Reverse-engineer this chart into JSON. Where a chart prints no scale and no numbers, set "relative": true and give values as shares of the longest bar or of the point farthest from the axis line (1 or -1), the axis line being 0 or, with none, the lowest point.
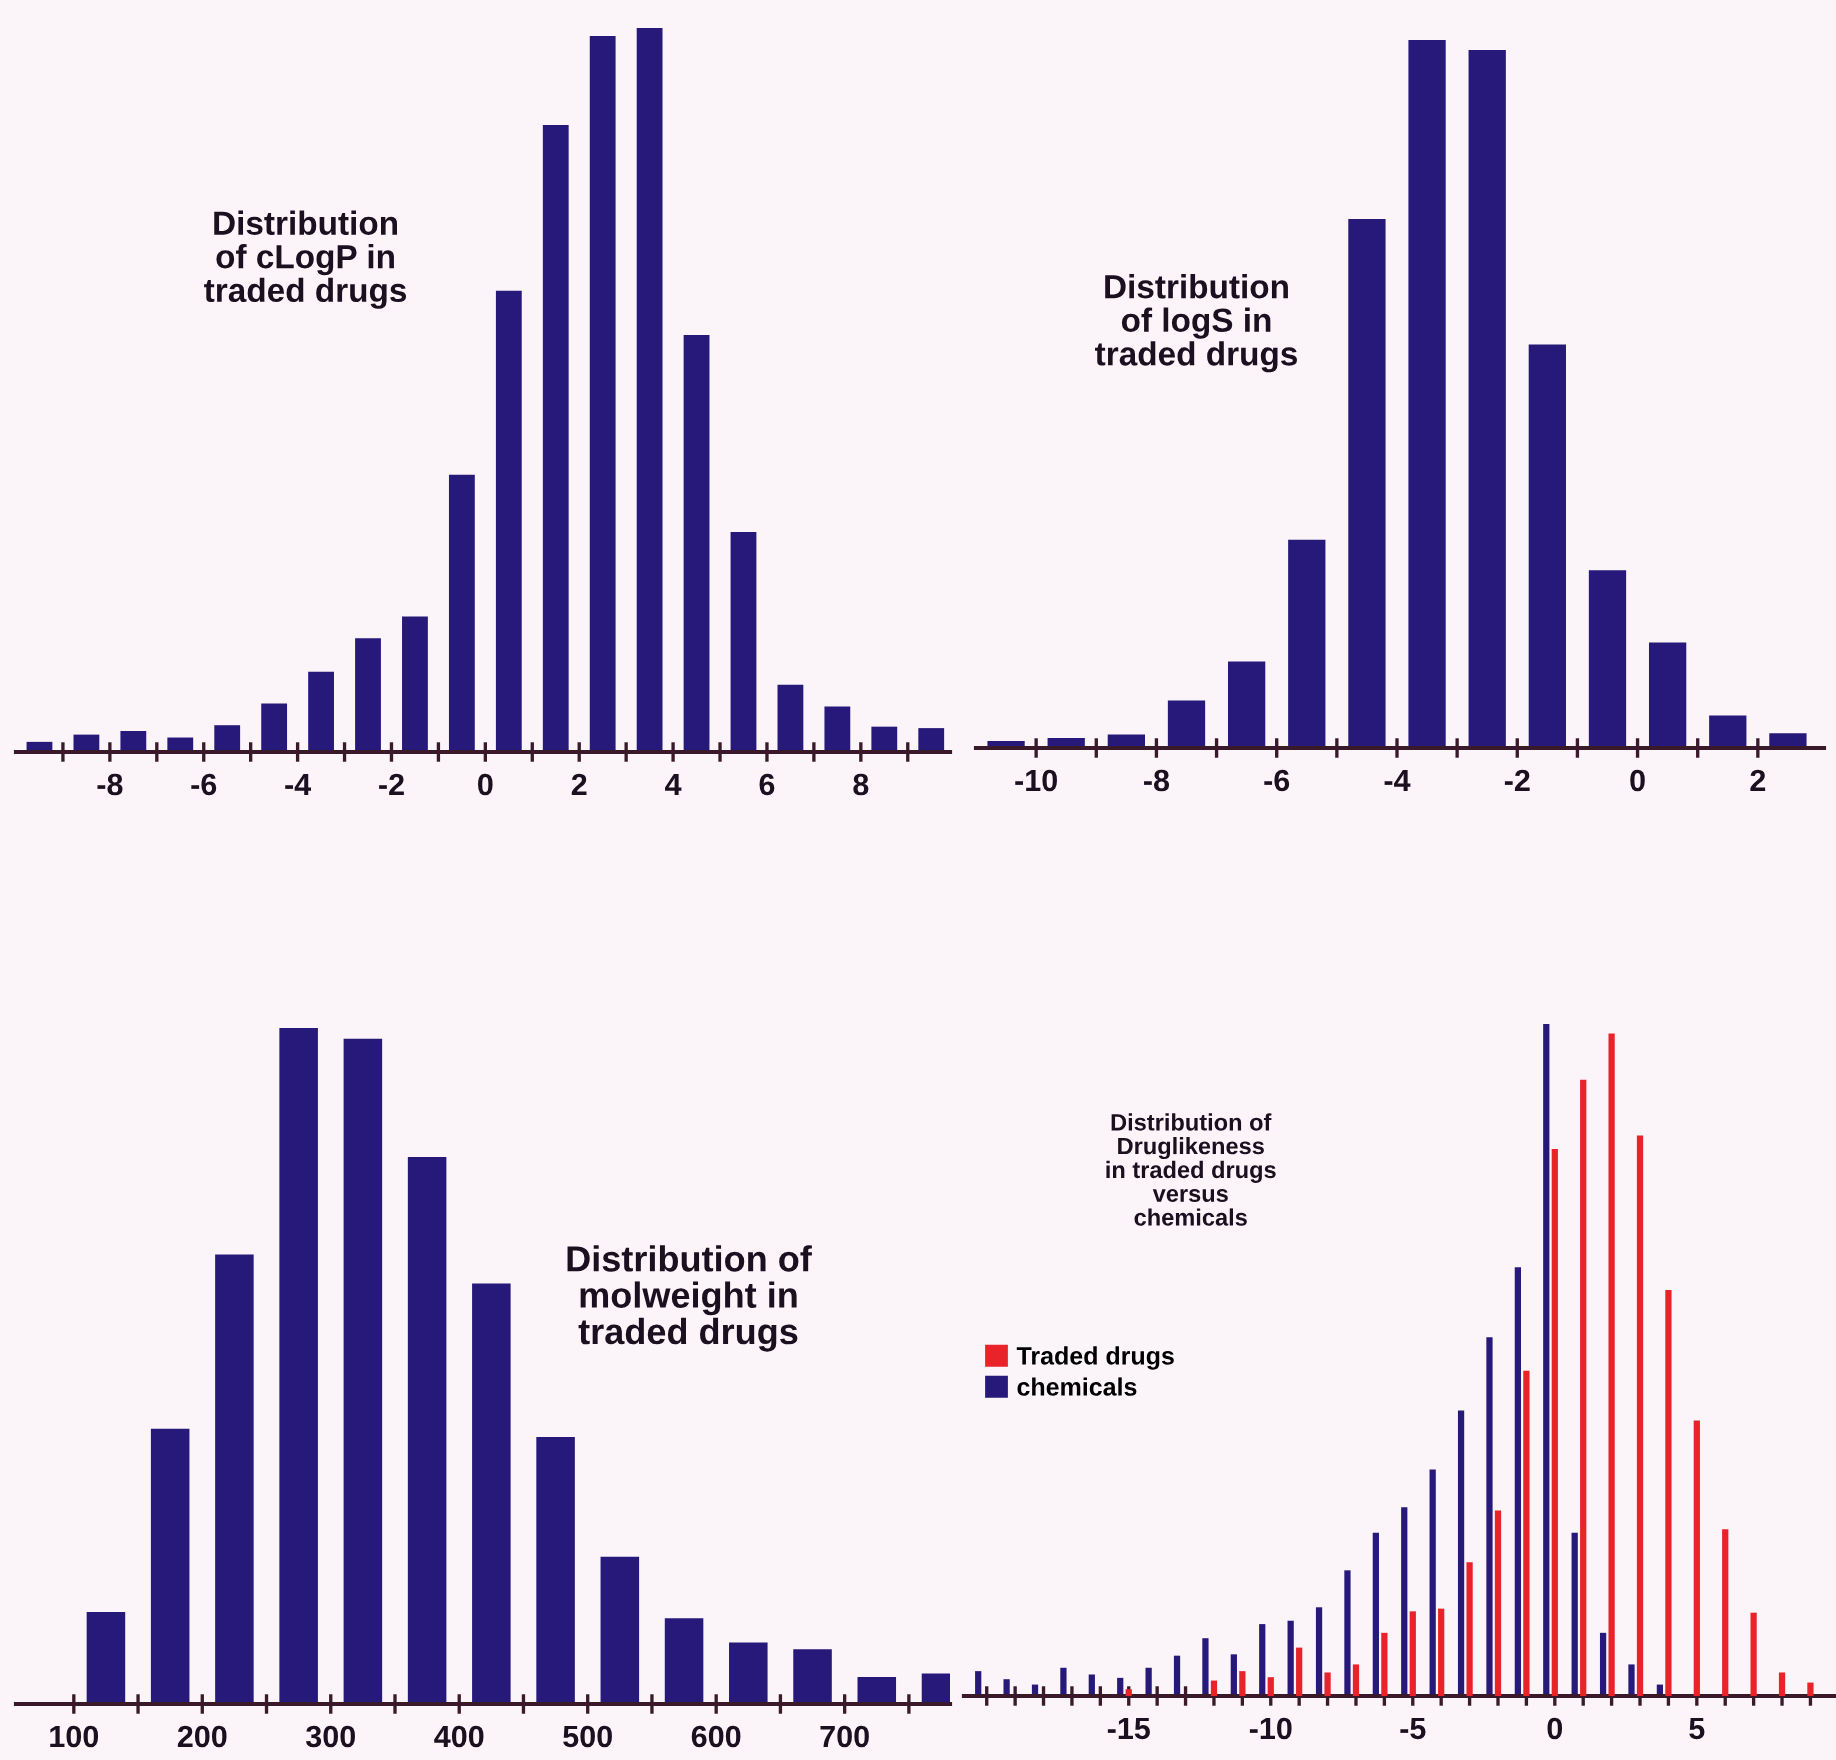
{
  "chart_data": [
    {
      "type": "bar",
      "title": "Distribution\nof cLogP in\ntraded drugs",
      "relative": true,
      "color": "#27197a",
      "x": [
        -9.5,
        -8.5,
        -7.5,
        -6.5,
        -5.5,
        -4.5,
        -3.5,
        -2.5,
        -1.5,
        -0.5,
        0.5,
        1.5,
        2.5,
        3.5,
        4.5,
        5.5,
        6.5,
        7.5,
        8.5,
        9.5
      ],
      "values": [
        0.014,
        0.024,
        0.029,
        0.02,
        0.037,
        0.067,
        0.111,
        0.157,
        0.187,
        0.383,
        0.637,
        0.866,
        0.989,
        1,
        0.576,
        0.304,
        0.093,
        0.063,
        0.035,
        0.033
      ],
      "xlim": [
        -10,
        9.9
      ],
      "xticks": [
        {
          "value": -9,
          "label": null
        },
        -8,
        {
          "value": -7,
          "label": null
        },
        -6,
        {
          "value": -5,
          "label": null
        },
        -4,
        {
          "value": -3,
          "label": null
        },
        -2,
        {
          "value": -1,
          "label": null
        },
        0,
        {
          "value": 1,
          "label": null
        },
        2,
        {
          "value": 3,
          "label": null
        },
        4,
        {
          "value": 5,
          "label": null
        },
        6,
        {
          "value": 7,
          "label": null
        },
        8,
        {
          "value": 9,
          "label": null
        }
      ]
    },
    {
      "type": "bar",
      "title": "Distribution\nof logS in\ntraded drugs",
      "relative": true,
      "color": "#27197a",
      "x": [
        -10.5,
        -9.5,
        -8.5,
        -7.5,
        -6.5,
        -5.5,
        -4.5,
        -3.5,
        -2.5,
        -1.5,
        -0.5,
        0.5,
        1.5,
        2.5
      ],
      "values": [
        0.01,
        0.014,
        0.019,
        0.067,
        0.122,
        0.294,
        0.747,
        1,
        0.986,
        0.57,
        0.251,
        0.149,
        0.046,
        0.021
      ],
      "xlim": [
        -11,
        3.1
      ],
      "xticks": [
        -10,
        {
          "value": -9,
          "label": null
        },
        -8,
        {
          "value": -7,
          "label": null
        },
        -6,
        {
          "value": -5,
          "label": null
        },
        -4,
        {
          "value": -3,
          "label": null
        },
        -2,
        {
          "value": -1,
          "label": null
        },
        0,
        {
          "value": 1,
          "label": null
        },
        2
      ]
    },
    {
      "type": "bar",
      "title": "Distribution of\nmolweight in\ntraded drugs",
      "relative": true,
      "color": "#27197a",
      "x": [
        125,
        175,
        225,
        275,
        325,
        375,
        425,
        475,
        525,
        575,
        625,
        675,
        725,
        775
      ],
      "values": [
        0.136,
        0.407,
        0.665,
        1,
        0.984,
        0.809,
        0.622,
        0.395,
        0.218,
        0.127,
        0.091,
        0.081,
        0.04,
        0.045
      ],
      "xlim": [
        55,
        782
      ],
      "xticks": [
        100,
        {
          "value": 150,
          "label": null
        },
        200,
        {
          "value": 250,
          "label": null
        },
        300,
        {
          "value": 350,
          "label": null
        },
        400,
        {
          "value": 450,
          "label": null
        },
        500,
        {
          "value": 550,
          "label": null
        },
        600,
        {
          "value": 650,
          "label": null
        },
        700,
        {
          "value": 750,
          "label": null
        }
      ]
    },
    {
      "type": "bar",
      "title": "Distribution of\nDruglikeness\nin traded drugs\nversus\nchemicals",
      "relative": true,
      "legend": "left",
      "x": [
        -20,
        -19,
        -18,
        -17,
        -16,
        -15,
        -14,
        -13,
        -12,
        -11,
        -10,
        -9,
        -8,
        -7,
        -6,
        -5,
        -4,
        -3,
        -2,
        -1,
        0,
        1,
        2,
        3,
        4,
        5,
        6,
        7,
        8,
        9
      ],
      "series": [
        {
          "name": "chemicals",
          "color": "#27197a",
          "values": [
            0.037,
            0.025,
            0.017,
            0.042,
            0.032,
            0.027,
            0.042,
            0.06,
            0.086,
            0.062,
            0.107,
            0.112,
            0.132,
            0.187,
            0.243,
            0.281,
            0.337,
            0.425,
            0.534,
            0.638,
            1,
            0.243,
            0.094,
            0.047,
            0.017,
            null,
            null,
            null,
            null,
            null
          ]
        },
        {
          "name": "Traded drugs",
          "color": "#e8242a",
          "values": [
            null,
            null,
            null,
            null,
            null,
            0.01,
            null,
            null,
            0.023,
            0.037,
            0.028,
            0.072,
            0.035,
            0.047,
            0.094,
            0.126,
            0.13,
            0.199,
            0.276,
            0.484,
            0.814,
            0.917,
            0.986,
            0.834,
            0.604,
            0.41,
            0.248,
            0.124,
            0.035,
            0.02
          ]
        }
      ],
      "xlim": [
        -20.8,
        9.9
      ],
      "xticks": [
        {
          "value": -20,
          "label": null
        },
        {
          "value": -19,
          "label": null
        },
        {
          "value": -18,
          "label": null
        },
        {
          "value": -17,
          "label": null
        },
        {
          "value": -16,
          "label": null
        },
        -15,
        {
          "value": -14,
          "label": null
        },
        {
          "value": -13,
          "label": null
        },
        {
          "value": -12,
          "label": null
        },
        {
          "value": -11,
          "label": null
        },
        -10,
        {
          "value": -9,
          "label": null
        },
        {
          "value": -8,
          "label": null
        },
        {
          "value": -7,
          "label": null
        },
        {
          "value": -6,
          "label": null
        },
        -5,
        {
          "value": -4,
          "label": null
        },
        {
          "value": -3,
          "label": null
        },
        {
          "value": -2,
          "label": null
        },
        {
          "value": -1,
          "label": null
        },
        0,
        {
          "value": 1,
          "label": null
        },
        {
          "value": 2,
          "label": null
        },
        {
          "value": 3,
          "label": null
        },
        {
          "value": 4,
          "label": null
        },
        5,
        {
          "value": 6,
          "label": null
        },
        {
          "value": 7,
          "label": null
        },
        {
          "value": 8,
          "label": null
        },
        {
          "value": 9,
          "label": null
        }
      ]
    }
  ]
}
